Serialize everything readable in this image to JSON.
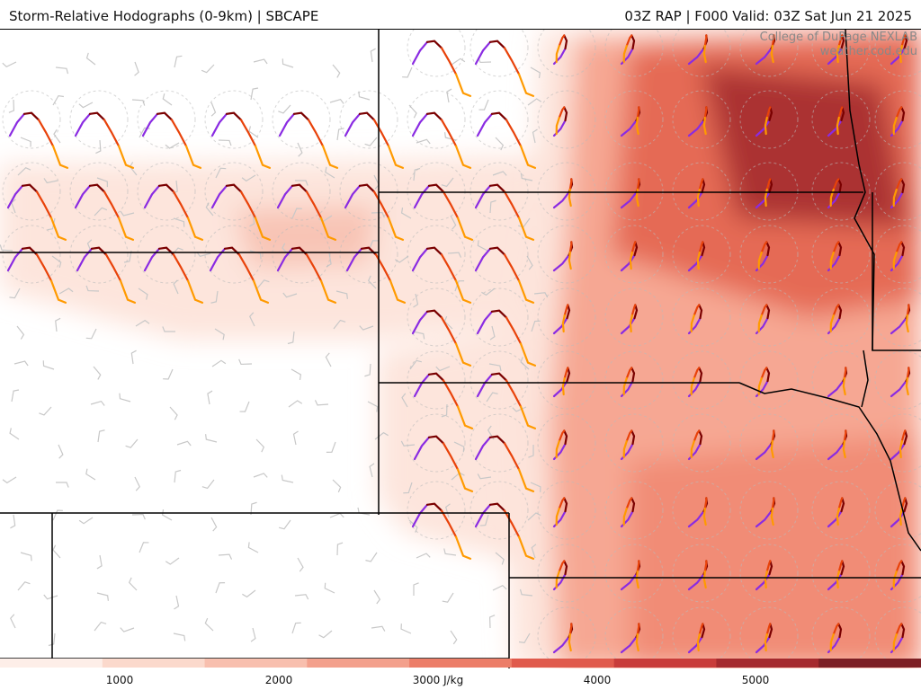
{
  "header": {
    "title_left": "Storm-Relative Hodographs (0-9km) | SBCAPE",
    "title_right": "03Z RAP | F000 Valid: 03Z Sat Jun 21 2025"
  },
  "credit": {
    "line1": "College of DuPage NEXLAB",
    "line2": "weather.cod.edu"
  },
  "colorbar": {
    "labels": [
      "1000",
      "2000",
      "3000 J/kg",
      "4000",
      "5000"
    ],
    "colors": [
      "#fdeee8",
      "#fbd9cc",
      "#f8bfae",
      "#f3a08c",
      "#ec7d68",
      "#e05a4c",
      "#c83c3a",
      "#a52a2e",
      "#7d1f24"
    ]
  },
  "map": {
    "cape_colors": {
      "light": "#fde4da",
      "mid": "#f5a48f",
      "high": "#e46650",
      "max": "#a8302f"
    },
    "hodograph_colors": [
      "#8a2be2",
      "#7a0000",
      "#e8420a",
      "#ff9a00"
    ]
  }
}
